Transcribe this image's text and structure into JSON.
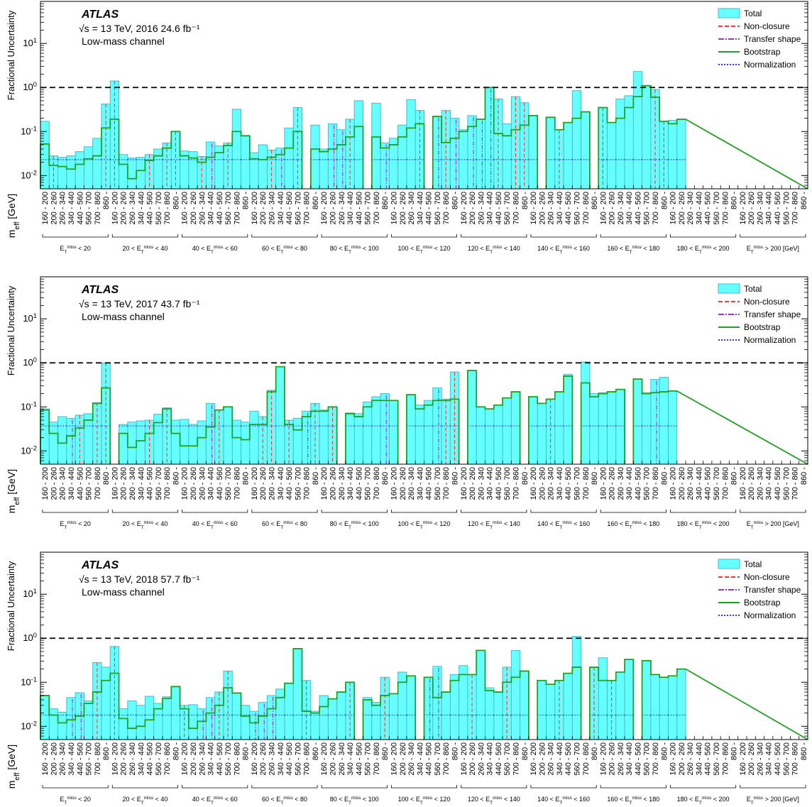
{
  "common": {
    "ylabel": "Fractional Uncertainty",
    "xlabel": "m_eff [GeV]",
    "atlas_label": "ATLAS",
    "energy_label": "√s = 13 TeV,",
    "channel_label": "Low-mass channel",
    "y_ticks": [
      "10^-2",
      "10^-1",
      "10^0",
      "10^1"
    ],
    "bin_labels": [
      "160 - 200",
      "200 - 260",
      "260 - 340",
      "340 - 440",
      "440 - 560",
      "560 - 700",
      "700 - 860",
      "860 -"
    ],
    "groups": [
      "E_T^miss < 20",
      "20 < E_T^miss < 40",
      "40 < E_T^miss < 60",
      "60 < E_T^miss < 80",
      "80 < E_T^miss < 100",
      "100 < E_T^miss < 120",
      "120 < E_T^miss < 140",
      "140 < E_T^miss < 160",
      "160 < E_T^miss < 180",
      "180 < E_T^miss < 200",
      "E_T^miss > 200 [GeV]"
    ],
    "legend": [
      "Total",
      "Non-closure",
      "Transfer shape",
      "Bootstrap",
      "Normalization"
    ],
    "colors": {
      "total_fill": "#66ffff",
      "total_line": "#4ab9c9",
      "nonclosure": "#ff3333",
      "transfer": "#9933dd",
      "bootstrap": "#22a022",
      "normalization": "#3333ff",
      "unity": "#000000"
    }
  },
  "chart_data": [
    {
      "type": "bar",
      "year_label": "2016 24.6 fb⁻¹",
      "yscale": "log",
      "ylim": [
        0.005,
        90
      ],
      "reference_line": 1,
      "normalization": 0.023,
      "total": [
        0.17,
        0.028,
        0.026,
        0.028,
        0.035,
        0.045,
        0.07,
        0.42,
        1.4,
        0.03,
        0.025,
        0.026,
        0.03,
        0.04,
        0.055,
        0.1,
        0.036,
        0.035,
        0.027,
        0.058,
        0.047,
        0.055,
        0.32,
        0.08,
        0.033,
        0.05,
        0.038,
        0.042,
        0.12,
        0.35,
        0,
        0.14,
        0.04,
        0.15,
        0.11,
        0.19,
        0.5,
        0,
        0.44,
        0.055,
        0.07,
        0.14,
        0.53,
        0.3,
        0,
        0.22,
        0.3,
        0.2,
        0.11,
        0.23,
        0.19,
        1.0,
        0.55,
        0.15,
        0.62,
        0.45,
        0.23,
        0,
        0.21,
        0.11,
        0.16,
        0.85,
        0.28,
        0,
        0.35,
        0.16,
        0.55,
        0.65,
        2.3,
        1.1,
        0.9,
        0.17,
        0.18,
        0.19
      ],
      "bootstrap": [
        0.052,
        0.017,
        0.016,
        0.014,
        0.018,
        0.024,
        0.028,
        0.12,
        0.19,
        0.018,
        0.0085,
        0.013,
        0.022,
        0.028,
        0.042,
        0.1,
        0.028,
        0.025,
        0.02,
        0.026,
        0.033,
        0.048,
        0.1,
        0.08,
        0.024,
        0.023,
        0.026,
        0.03,
        0.042,
        0.1,
        0,
        0.04,
        0.035,
        0.04,
        0.05,
        0.075,
        0.13,
        0,
        0.075,
        0.042,
        0.05,
        0.075,
        0.12,
        0.15,
        0,
        0.22,
        0.056,
        0.07,
        0.1,
        0.13,
        0.19,
        1.0,
        0.09,
        0.08,
        0.11,
        0.14,
        0.23,
        0,
        0.21,
        0.11,
        0.16,
        0.2,
        0.28,
        0,
        0.35,
        0.16,
        0.2,
        0.35,
        0.62,
        1.1,
        0.6,
        0.17,
        0.15,
        0.19
      ],
      "nonclosure_bins": [
        1,
        7,
        8,
        12,
        14,
        15,
        18,
        21,
        26,
        29,
        35,
        37,
        43,
        46,
        52,
        54,
        55,
        59,
        64,
        70,
        71
      ],
      "transfer_bins": [
        19,
        27,
        33,
        34,
        39,
        45,
        47,
        49,
        50,
        51
      ]
    },
    {
      "type": "bar",
      "year_label": "2017 43.7 fb⁻¹",
      "yscale": "log",
      "ylim": [
        0.005,
        90
      ],
      "reference_line": 1,
      "normalization": 0.037,
      "total": [
        0.09,
        0.045,
        0.06,
        0.055,
        0.065,
        0.07,
        0.125,
        1.0,
        0,
        0.04,
        0.045,
        0.048,
        0.05,
        0.068,
        0.095,
        0.05,
        0.052,
        0.04,
        0.048,
        0.12,
        0.085,
        0.1,
        0.05,
        0.045,
        0.08,
        0.06,
        0.24,
        0.82,
        0.05,
        0.055,
        0.08,
        0.12,
        0.085,
        0.1,
        0,
        0.073,
        0.07,
        0.13,
        0.17,
        0.2,
        0.14,
        0,
        0.19,
        0.11,
        0.14,
        0.27,
        0.15,
        0.62,
        0,
        0.67,
        0.1,
        0.09,
        0.11,
        0.16,
        0.22,
        0,
        0.17,
        0.12,
        0.15,
        0.22,
        0.55,
        0,
        1.05,
        0.2,
        0.21,
        0.22,
        0.25,
        0,
        0.43,
        0.21,
        0.42,
        0.47,
        0.23
      ],
      "bootstrap": [
        0.085,
        0.025,
        0.015,
        0.022,
        0.033,
        0.05,
        0.12,
        0.27,
        0,
        0.025,
        0.012,
        0.017,
        0.025,
        0.044,
        0.09,
        0.025,
        0.013,
        0.013,
        0.02,
        0.035,
        0.085,
        0.1,
        0.02,
        0.018,
        0.04,
        0.04,
        0.22,
        0.82,
        0.04,
        0.03,
        0.06,
        0.08,
        0.08,
        0.1,
        0,
        0.07,
        0.06,
        0.1,
        0.14,
        0.14,
        0.14,
        0,
        0.19,
        0.09,
        0.11,
        0.14,
        0.14,
        0.15,
        0,
        0.67,
        0.1,
        0.09,
        0.11,
        0.16,
        0.22,
        0,
        0.17,
        0.12,
        0.15,
        0.22,
        0.5,
        0,
        0.35,
        0.17,
        0.2,
        0.22,
        0.25,
        0,
        0.43,
        0.2,
        0.21,
        0.22,
        0.23
      ],
      "nonclosure_bins": [
        4,
        6,
        7,
        12,
        14,
        20,
        25,
        26,
        28,
        31,
        33,
        46,
        47,
        58,
        61
      ],
      "transfer_bins": [
        3,
        19,
        30,
        39,
        41,
        45,
        70
      ]
    },
    {
      "type": "bar",
      "year_label": "2018 57.7 fb⁻¹",
      "yscale": "log",
      "ylim": [
        0.005,
        90
      ],
      "reference_line": 1,
      "normalization": 0.018,
      "total": [
        0.05,
        0.025,
        0.021,
        0.045,
        0.058,
        0.038,
        0.28,
        0.22,
        0.65,
        0.025,
        0.038,
        0.03,
        0.048,
        0.033,
        0.047,
        0.08,
        0.03,
        0.031,
        0.025,
        0.045,
        0.06,
        0.18,
        0.057,
        0.03,
        0.022,
        0.035,
        0.05,
        0.07,
        0.095,
        0.58,
        0.11,
        0.022,
        0.05,
        0.042,
        0.06,
        0.1,
        0,
        0.045,
        0.035,
        0.13,
        0.055,
        0.17,
        0.14,
        0,
        0.13,
        0.23,
        0.06,
        0.15,
        0.24,
        0.15,
        0.53,
        0.075,
        0.06,
        0.22,
        0.53,
        0.18,
        0,
        0.11,
        0.09,
        0.11,
        0.16,
        1.1,
        0,
        0.22,
        0.36,
        0.11,
        0.17,
        0.33,
        0,
        0.31,
        0.15,
        0.13,
        0.14,
        0.2
      ],
      "bootstrap": [
        0.05,
        0.018,
        0.012,
        0.014,
        0.017,
        0.033,
        0.06,
        0.11,
        0.16,
        0.015,
        0.009,
        0.01,
        0.014,
        0.025,
        0.043,
        0.08,
        0.025,
        0.009,
        0.013,
        0.02,
        0.03,
        0.075,
        0.057,
        0.017,
        0.012,
        0.017,
        0.025,
        0.045,
        0.095,
        0.58,
        0.022,
        0.02,
        0.028,
        0.042,
        0.06,
        0.1,
        0,
        0.04,
        0.03,
        0.05,
        0.055,
        0.1,
        0.14,
        0,
        0.13,
        0.045,
        0.06,
        0.11,
        0.15,
        0.15,
        0.53,
        0.065,
        0.06,
        0.1,
        0.13,
        0.18,
        0,
        0.11,
        0.09,
        0.11,
        0.16,
        0.22,
        0,
        0.22,
        0.11,
        0.11,
        0.17,
        0.33,
        0,
        0.31,
        0.15,
        0.13,
        0.14,
        0.2
      ],
      "nonclosure_bins": [
        6,
        8,
        16,
        20,
        21,
        30,
        35,
        39,
        43,
        49,
        53,
        59,
        63,
        65
      ],
      "transfer_bins": [
        3,
        4,
        18,
        19,
        24,
        25,
        26,
        44,
        45
      ]
    }
  ]
}
